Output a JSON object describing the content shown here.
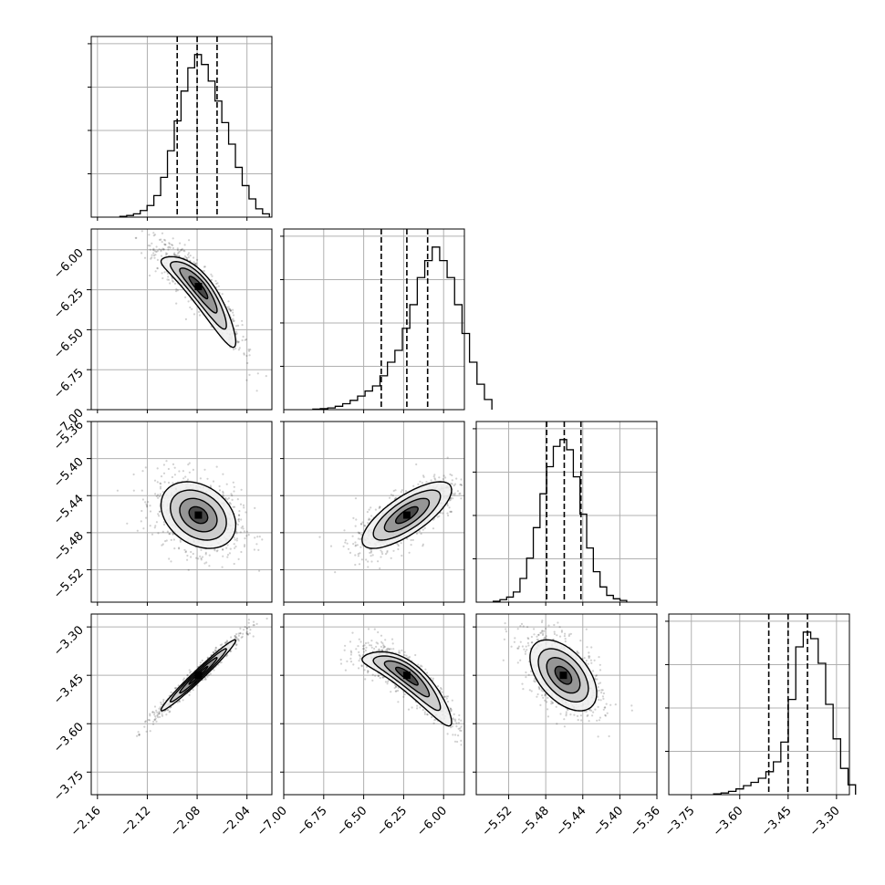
{
  "chart_data": {
    "type": "corner",
    "xlabel": "",
    "ylabel": "",
    "grid": true,
    "parameters": [
      {
        "index": 0,
        "range": [
          -2.165,
          -2.02
        ],
        "ticks": [
          -2.16,
          -2.12,
          -2.08,
          -2.04
        ],
        "tick_labels": [
          "−2.16",
          "−2.12",
          "−2.08",
          "−2.04"
        ],
        "quantiles": [
          -2.096,
          -2.08,
          -2.064
        ],
        "mean": -2.079,
        "sd": 0.015
      },
      {
        "index": 1,
        "range": [
          -7.0,
          -5.87
        ],
        "ticks": [
          -7.0,
          -6.75,
          -6.5,
          -6.25,
          -6.0
        ],
        "tick_labels": [
          "−7.00",
          "−6.75",
          "−6.50",
          "−6.25",
          "−6.00"
        ],
        "quantiles": [
          -6.39,
          -6.23,
          -6.1
        ],
        "mean": -6.23,
        "sd": 0.14
      },
      {
        "index": 2,
        "range": [
          -5.555,
          -5.36
        ],
        "ticks": [
          -5.52,
          -5.48,
          -5.44,
          -5.4,
          -5.36
        ],
        "tick_labels": [
          "−5.52",
          "−5.48",
          "−5.44",
          "−5.40",
          "−5.36"
        ],
        "quantiles": [
          -5.479,
          -5.46,
          -5.442
        ],
        "mean": -5.461,
        "sd": 0.018
      },
      {
        "index": 3,
        "range": [
          -3.82,
          -3.26
        ],
        "ticks": [
          -3.75,
          -3.6,
          -3.45,
          -3.3
        ],
        "tick_labels": [
          "−3.75",
          "−3.60",
          "−3.45",
          "−3.30"
        ],
        "quantiles": [
          -3.51,
          -3.45,
          -3.39
        ],
        "mean": -3.45,
        "sd": 0.055
      }
    ],
    "histograms": [
      {
        "param": 0,
        "values": [
          0.5,
          1,
          2,
          4,
          7,
          13,
          24,
          40,
          58,
          76,
          90,
          98,
          92,
          82,
          70,
          57,
          44,
          30,
          19,
          11,
          5,
          2
        ]
      },
      {
        "param": 1,
        "values": [
          0.3,
          0.6,
          1,
          2,
          3.5,
          5.5,
          8,
          11,
          14,
          20,
          28,
          35,
          48,
          62,
          78,
          88,
          96,
          88,
          78,
          62,
          45,
          28,
          15,
          6
        ]
      },
      {
        "param": 2,
        "values": [
          0.5,
          1.5,
          3,
          6,
          14,
          26,
          44,
          64,
          80,
          92,
          96,
          90,
          74,
          52,
          32,
          18,
          9,
          4,
          2,
          1
        ]
      },
      {
        "param": 3,
        "values": [
          0.5,
          1,
          2,
          3.5,
          5.5,
          7.5,
          10,
          14,
          20,
          32,
          58,
          90,
          99,
          95,
          80,
          55,
          34,
          16,
          6
        ]
      }
    ],
    "correlations": [
      {
        "x": 0,
        "y": 1,
        "rho": -0.9,
        "curved": true
      },
      {
        "x": 0,
        "y": 2,
        "rho": -0.3
      },
      {
        "x": 1,
        "y": 2,
        "rho": 0.75
      },
      {
        "x": 0,
        "y": 3,
        "rho": 0.98
      },
      {
        "x": 1,
        "y": 3,
        "rho": -0.88,
        "curved": true
      },
      {
        "x": 2,
        "y": 3,
        "rho": -0.5
      }
    ],
    "contour_levels_sigma": [
      0.5,
      1.0,
      1.5,
      2.0
    ]
  }
}
